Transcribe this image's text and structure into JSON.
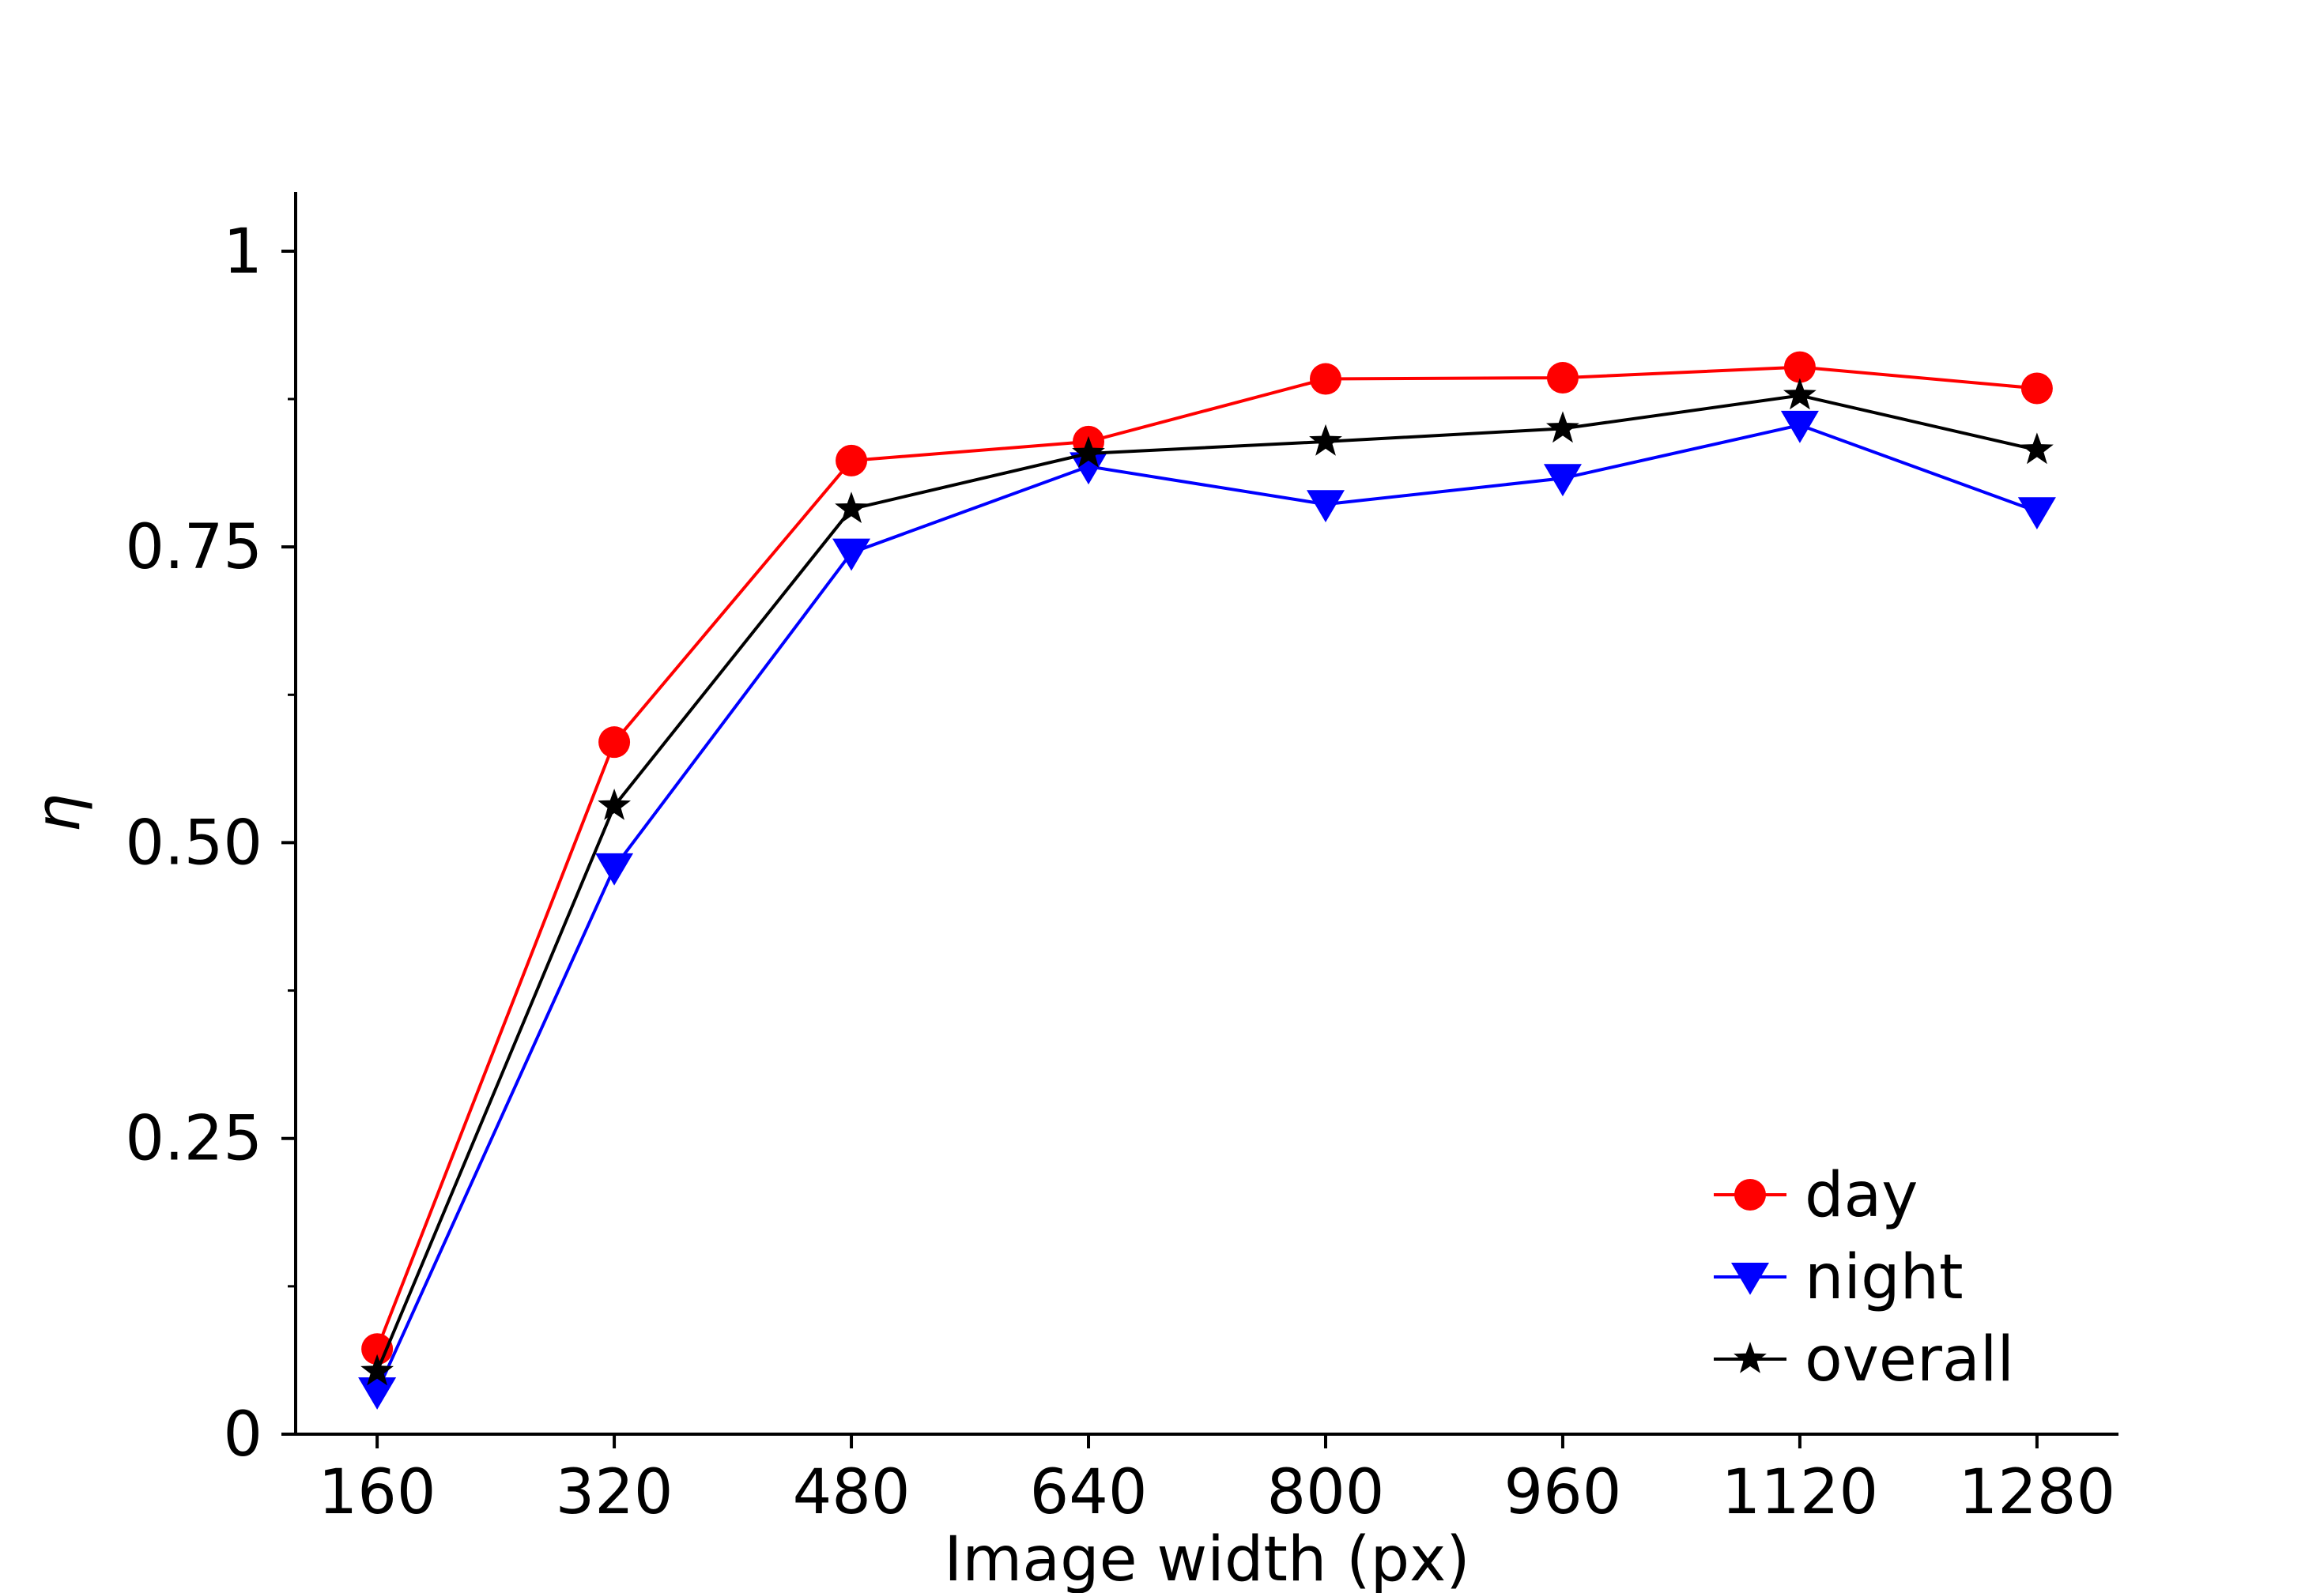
{
  "chart_data": {
    "type": "line",
    "title": "",
    "xlabel": "Image width (px)",
    "ylabel": "η",
    "x": [
      160,
      320,
      480,
      640,
      800,
      960,
      1120,
      1280
    ],
    "xticks": [
      "160",
      "320",
      "480",
      "640",
      "800",
      "960",
      "1120",
      "1280"
    ],
    "yticks": [
      {
        "value": 0,
        "label": "0"
      },
      {
        "value": 0.25,
        "label": "0.25"
      },
      {
        "value": 0.5,
        "label": "0.50"
      },
      {
        "value": 0.75,
        "label": "0.75"
      },
      {
        "value": 1,
        "label": "1"
      }
    ],
    "yminor_ticks": [
      0.125,
      0.375,
      0.625,
      0.875
    ],
    "ylim": [
      0,
      1.05
    ],
    "xlim": [
      105,
      1335
    ],
    "grid": false,
    "legend_position": "bottom-right",
    "series": [
      {
        "name": "day",
        "color": "#ff0000",
        "marker": "circle",
        "values": [
          0.072,
          0.585,
          0.823,
          0.839,
          0.892,
          0.893,
          0.902,
          0.884
        ]
      },
      {
        "name": "night",
        "color": "#0000ff",
        "marker": "triangle-down",
        "values": [
          0.036,
          0.479,
          0.745,
          0.818,
          0.786,
          0.808,
          0.853,
          0.78
        ]
      },
      {
        "name": "overall",
        "color": "#000000",
        "marker": "star",
        "values": [
          0.053,
          0.531,
          0.782,
          0.829,
          0.839,
          0.85,
          0.878,
          0.832
        ]
      }
    ]
  }
}
